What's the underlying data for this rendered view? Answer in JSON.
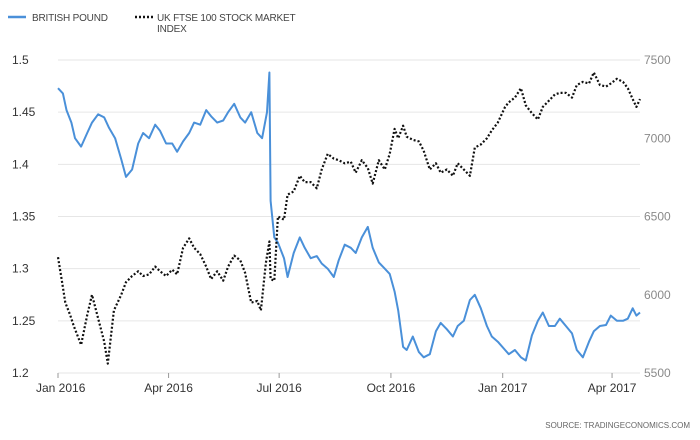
{
  "chart_data": {
    "type": "line",
    "title": "",
    "xlabel": "",
    "ylabel": "",
    "x_ticks": [
      "Jan 2016",
      "Apr 2016",
      "Jul 2016",
      "Oct 2016",
      "Jan 2017",
      "Apr 2017"
    ],
    "x_range": [
      "2016-01-01",
      "2017-04-24"
    ],
    "y_left": {
      "ticks": [
        "1.2",
        "1.25",
        "1.3",
        "1.35",
        "1.4",
        "1.45",
        "1.5"
      ],
      "range": [
        1.2,
        1.5
      ]
    },
    "y_right": {
      "ticks": [
        "5500",
        "6000",
        "6500",
        "7000",
        "7500"
      ],
      "range": [
        5500,
        7500
      ]
    },
    "grid": "horizontal",
    "legend_position": "top-left",
    "source": "SOURCE: TRADINGECONOMICS.COM",
    "colors": {
      "pound": "#4a90d9",
      "ftse": "#111111"
    },
    "series": [
      {
        "name": "BRITISH POUND",
        "axis": "left",
        "style": "solid",
        "x": [
          "2016-01-01",
          "2016-01-05",
          "2016-01-08",
          "2016-01-12",
          "2016-01-15",
          "2016-01-20",
          "2016-01-25",
          "2016-01-29",
          "2016-02-03",
          "2016-02-08",
          "2016-02-12",
          "2016-02-17",
          "2016-02-22",
          "2016-02-26",
          "2016-03-02",
          "2016-03-07",
          "2016-03-11",
          "2016-03-16",
          "2016-03-21",
          "2016-03-25",
          "2016-03-30",
          "2016-04-04",
          "2016-04-08",
          "2016-04-13",
          "2016-04-18",
          "2016-04-22",
          "2016-04-27",
          "2016-05-02",
          "2016-05-06",
          "2016-05-11",
          "2016-05-16",
          "2016-05-20",
          "2016-05-25",
          "2016-05-30",
          "2016-06-03",
          "2016-06-08",
          "2016-06-13",
          "2016-06-17",
          "2016-06-21",
          "2016-06-23",
          "2016-06-24",
          "2016-06-27",
          "2016-06-30",
          "2016-07-05",
          "2016-07-08",
          "2016-07-13",
          "2016-07-18",
          "2016-07-22",
          "2016-07-27",
          "2016-08-01",
          "2016-08-05",
          "2016-08-10",
          "2016-08-15",
          "2016-08-19",
          "2016-08-24",
          "2016-08-29",
          "2016-09-02",
          "2016-09-07",
          "2016-09-12",
          "2016-09-16",
          "2016-09-21",
          "2016-09-26",
          "2016-09-30",
          "2016-10-04",
          "2016-10-07",
          "2016-10-11",
          "2016-10-14",
          "2016-10-19",
          "2016-10-24",
          "2016-10-28",
          "2016-11-02",
          "2016-11-07",
          "2016-11-11",
          "2016-11-16",
          "2016-11-21",
          "2016-11-25",
          "2016-11-30",
          "2016-12-05",
          "2016-12-09",
          "2016-12-14",
          "2016-12-19",
          "2016-12-23",
          "2016-12-28",
          "2017-01-03",
          "2017-01-06",
          "2017-01-11",
          "2017-01-16",
          "2017-01-20",
          "2017-01-25",
          "2017-01-30",
          "2017-02-03",
          "2017-02-08",
          "2017-02-13",
          "2017-02-17",
          "2017-02-22",
          "2017-02-27",
          "2017-03-03",
          "2017-03-08",
          "2017-03-13",
          "2017-03-17",
          "2017-03-22",
          "2017-03-27",
          "2017-03-31",
          "2017-04-05",
          "2017-04-10",
          "2017-04-14",
          "2017-04-18",
          "2017-04-21",
          "2017-04-24"
        ],
        "values": [
          1.473,
          1.468,
          1.452,
          1.44,
          1.425,
          1.417,
          1.43,
          1.44,
          1.448,
          1.445,
          1.435,
          1.425,
          1.405,
          1.388,
          1.395,
          1.42,
          1.43,
          1.425,
          1.438,
          1.432,
          1.42,
          1.42,
          1.412,
          1.422,
          1.43,
          1.44,
          1.438,
          1.452,
          1.446,
          1.44,
          1.442,
          1.45,
          1.458,
          1.445,
          1.44,
          1.45,
          1.43,
          1.425,
          1.45,
          1.488,
          1.365,
          1.33,
          1.325,
          1.31,
          1.292,
          1.315,
          1.33,
          1.32,
          1.31,
          1.312,
          1.305,
          1.3,
          1.292,
          1.308,
          1.323,
          1.32,
          1.315,
          1.33,
          1.34,
          1.32,
          1.306,
          1.3,
          1.295,
          1.278,
          1.26,
          1.225,
          1.222,
          1.235,
          1.22,
          1.215,
          1.218,
          1.24,
          1.248,
          1.242,
          1.235,
          1.245,
          1.25,
          1.27,
          1.275,
          1.262,
          1.245,
          1.235,
          1.23,
          1.222,
          1.218,
          1.222,
          1.215,
          1.212,
          1.236,
          1.25,
          1.258,
          1.245,
          1.245,
          1.252,
          1.245,
          1.238,
          1.222,
          1.215,
          1.23,
          1.24,
          1.245,
          1.246,
          1.255,
          1.25,
          1.25,
          1.252,
          1.262,
          1.255,
          1.258
        ]
      },
      {
        "name": "UK FTSE 100 STOCK MARKET INDEX",
        "axis": "right",
        "style": "dotted",
        "x": [
          "2016-01-01",
          "2016-01-04",
          "2016-01-07",
          "2016-01-11",
          "2016-01-14",
          "2016-01-20",
          "2016-01-25",
          "2016-01-29",
          "2016-02-03",
          "2016-02-08",
          "2016-02-11",
          "2016-02-16",
          "2016-02-22",
          "2016-02-26",
          "2016-03-02",
          "2016-03-07",
          "2016-03-11",
          "2016-03-16",
          "2016-03-21",
          "2016-03-25",
          "2016-03-30",
          "2016-04-04",
          "2016-04-08",
          "2016-04-13",
          "2016-04-18",
          "2016-04-22",
          "2016-04-27",
          "2016-05-02",
          "2016-05-06",
          "2016-05-11",
          "2016-05-16",
          "2016-05-20",
          "2016-05-25",
          "2016-05-30",
          "2016-06-03",
          "2016-06-08",
          "2016-06-13",
          "2016-06-16",
          "2016-06-20",
          "2016-06-23",
          "2016-06-24",
          "2016-06-27",
          "2016-06-30",
          "2016-07-05",
          "2016-07-08",
          "2016-07-13",
          "2016-07-18",
          "2016-07-22",
          "2016-07-27",
          "2016-08-01",
          "2016-08-05",
          "2016-08-10",
          "2016-08-15",
          "2016-08-19",
          "2016-08-24",
          "2016-08-29",
          "2016-09-02",
          "2016-09-07",
          "2016-09-12",
          "2016-09-16",
          "2016-09-21",
          "2016-09-26",
          "2016-09-30",
          "2016-10-04",
          "2016-10-07",
          "2016-10-11",
          "2016-10-14",
          "2016-10-19",
          "2016-10-24",
          "2016-10-28",
          "2016-11-02",
          "2016-11-07",
          "2016-11-11",
          "2016-11-16",
          "2016-11-21",
          "2016-11-25",
          "2016-11-30",
          "2016-12-05",
          "2016-12-09",
          "2016-12-14",
          "2016-12-19",
          "2016-12-23",
          "2016-12-28",
          "2017-01-03",
          "2017-01-06",
          "2017-01-11",
          "2017-01-16",
          "2017-01-20",
          "2017-01-25",
          "2017-01-30",
          "2017-02-03",
          "2017-02-08",
          "2017-02-13",
          "2017-02-17",
          "2017-02-22",
          "2017-02-27",
          "2017-03-03",
          "2017-03-08",
          "2017-03-13",
          "2017-03-17",
          "2017-03-22",
          "2017-03-27",
          "2017-03-31",
          "2017-04-05",
          "2017-04-10",
          "2017-04-14",
          "2017-04-18",
          "2017-04-21",
          "2017-04-24"
        ],
        "values": [
          6240,
          6100,
          5950,
          5870,
          5800,
          5680,
          5870,
          6000,
          5850,
          5700,
          5560,
          5900,
          6000,
          6080,
          6120,
          6150,
          6120,
          6130,
          6180,
          6150,
          6120,
          6160,
          6130,
          6300,
          6360,
          6300,
          6260,
          6180,
          6100,
          6150,
          6090,
          6180,
          6250,
          6220,
          6140,
          5950,
          5960,
          5900,
          6200,
          6340,
          6100,
          6090,
          6500,
          6480,
          6640,
          6660,
          6760,
          6720,
          6720,
          6680,
          6800,
          6900,
          6870,
          6860,
          6840,
          6850,
          6780,
          6860,
          6810,
          6710,
          6860,
          6800,
          6900,
          7060,
          7000,
          7080,
          7010,
          6990,
          6980,
          6920,
          6800,
          6840,
          6780,
          6800,
          6760,
          6840,
          6800,
          6760,
          6940,
          6960,
          7000,
          7050,
          7100,
          7200,
          7230,
          7260,
          7320,
          7210,
          7160,
          7120,
          7200,
          7240,
          7280,
          7290,
          7290,
          7260,
          7340,
          7360,
          7350,
          7420,
          7340,
          7330,
          7350,
          7380,
          7360,
          7320,
          7250,
          7200,
          7250
        ]
      }
    ]
  }
}
